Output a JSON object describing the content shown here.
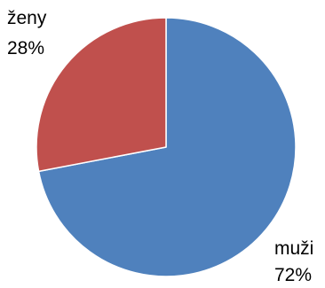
{
  "chart_data": {
    "type": "pie",
    "title": "",
    "slices": [
      {
        "label": "muži",
        "value": 72,
        "value_label": "72%",
        "color": "#4F81BD"
      },
      {
        "label": "ženy",
        "value": 28,
        "value_label": "28%",
        "color": "#C0504D"
      }
    ],
    "start_angle_deg": 0,
    "direction": "clockwise",
    "legend": "none"
  }
}
